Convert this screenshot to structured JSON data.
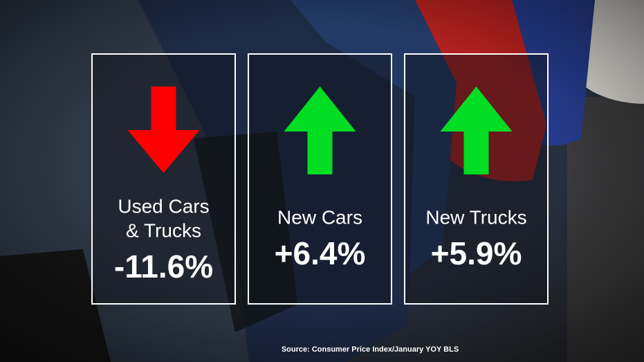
{
  "panels": [
    {
      "label": [
        "Used Cars",
        "& Trucks"
      ],
      "value": "-11.6%",
      "arrow": "down",
      "arrow_color": "#ff0000"
    },
    {
      "label": [
        "New Cars"
      ],
      "value": "+6.4%",
      "arrow": "up",
      "arrow_color": "#00dd22"
    },
    {
      "label": [
        "New Trucks"
      ],
      "value": "+5.9%",
      "arrow": "up",
      "arrow_color": "#00dd22"
    }
  ],
  "source": "Source: Consumer Price Index/January YOY BLS"
}
